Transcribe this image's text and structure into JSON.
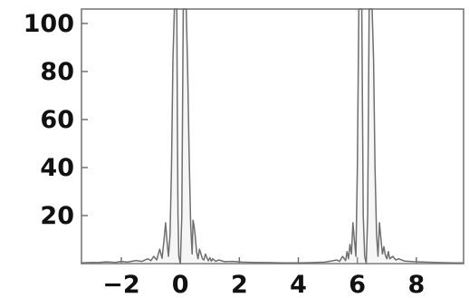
{
  "chart_data": {
    "type": "line",
    "title": "",
    "xlabel": "",
    "ylabel": "",
    "xlim": [
      -3.35,
      9.6
    ],
    "ylim": [
      0,
      106
    ],
    "grid": false,
    "xticks": [
      -2,
      0,
      2,
      4,
      6,
      8
    ],
    "xtick_labels": [
      "−2",
      "0",
      "2",
      "4",
      "6",
      "8"
    ],
    "yticks": [
      20,
      40,
      60,
      80,
      100
    ],
    "ytick_labels": [
      "20",
      "40",
      "60",
      "80",
      "100"
    ],
    "series": [
      {
        "name": "",
        "color": "#6f6f6f",
        "x": [
          -3.35,
          -3.0,
          -2.8,
          -2.5,
          -2.2,
          -2.0,
          -1.8,
          -1.5,
          -1.3,
          -1.1,
          -1.0,
          -0.9,
          -0.8,
          -0.7,
          -0.62,
          -0.55,
          -0.5,
          -0.45,
          -0.4,
          -0.35,
          -0.3,
          -0.25,
          -0.2,
          -0.15,
          -0.12,
          -0.1,
          -0.08,
          -0.05,
          0.0,
          0.05,
          0.1,
          0.15,
          0.2,
          0.25,
          0.3,
          0.35,
          0.4,
          0.43,
          0.46,
          0.5,
          0.55,
          0.6,
          0.65,
          0.7,
          0.75,
          0.8,
          0.85,
          0.9,
          0.95,
          1.0,
          1.05,
          1.1,
          1.2,
          1.3,
          1.5,
          1.8,
          2.1,
          2.5,
          3.0,
          3.5,
          4.0,
          4.5,
          4.9,
          5.1,
          5.3,
          5.4,
          5.5,
          5.6,
          5.65,
          5.7,
          5.75,
          5.8,
          5.85,
          5.9,
          5.95,
          6.0,
          6.05,
          6.1,
          6.15,
          6.2,
          6.25,
          6.3,
          6.35,
          6.4,
          6.45,
          6.5,
          6.55,
          6.6,
          6.65,
          6.7,
          6.75,
          6.8,
          6.85,
          6.9,
          6.95,
          7.0,
          7.05,
          7.1,
          7.2,
          7.3,
          7.4,
          7.6,
          7.9,
          8.3,
          8.8,
          9.3,
          9.6
        ],
        "y": [
          0.3,
          0.5,
          0.4,
          0.7,
          0.5,
          0.9,
          0.6,
          1.3,
          0.9,
          2.0,
          1.2,
          3.0,
          1.5,
          6.0,
          2.2,
          10.0,
          17.0,
          9.0,
          3.0,
          12.0,
          40.0,
          85.0,
          106.0,
          106.0,
          106.0,
          60.0,
          20.0,
          3.0,
          0.0,
          20.0,
          106.0,
          106.0,
          106.0,
          80.0,
          45.0,
          16.0,
          4.0,
          18.0,
          16.0,
          12.0,
          5.0,
          2.0,
          6.0,
          4.0,
          2.0,
          1.5,
          4.0,
          2.5,
          1.2,
          2.5,
          1.0,
          2.0,
          0.9,
          1.5,
          0.8,
          0.9,
          0.6,
          0.5,
          0.4,
          0.3,
          0.3,
          0.4,
          0.6,
          1.0,
          1.5,
          0.9,
          3.0,
          1.2,
          5.0,
          2.0,
          8.0,
          4.0,
          17.0,
          10.0,
          3.0,
          40.0,
          106.0,
          106.0,
          106.0,
          20.0,
          3.0,
          0.0,
          20.0,
          106.0,
          106.0,
          106.0,
          85.0,
          40.0,
          12.0,
          3.0,
          17.0,
          10.0,
          4.0,
          7.0,
          3.5,
          2.0,
          5.0,
          2.0,
          3.0,
          1.5,
          2.0,
          1.0,
          0.8,
          0.6,
          0.4,
          0.3,
          0.3
        ]
      }
    ]
  }
}
